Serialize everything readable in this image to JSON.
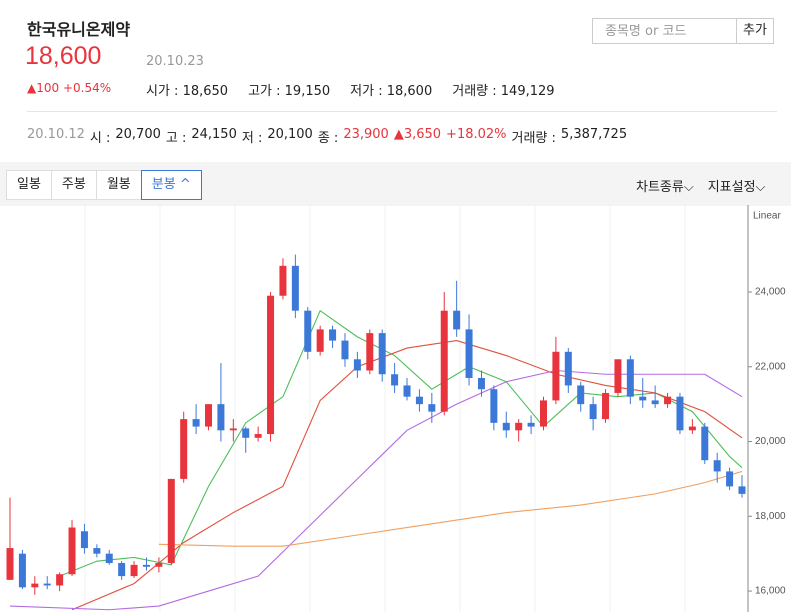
{
  "header": {
    "name": "한국유니온제약",
    "price": "18,600",
    "date": "20.10.23",
    "change": "▲100",
    "change_pct": "+0.54%",
    "stats": [
      {
        "label": "시가 :",
        "value": "18,650"
      },
      {
        "label": "고가 :",
        "value": "19,150"
      },
      {
        "label": "저가 :",
        "value": "18,600"
      },
      {
        "label": "거래량 :",
        "value": "149,129"
      }
    ],
    "search_placeholder": "종목명 or 코드",
    "add_button": "추가"
  },
  "prev_day": {
    "date": "20.10.12",
    "open_label": "시 :",
    "open": "20,700",
    "high_label": "고 :",
    "high": "24,150",
    "low_label": "저 :",
    "low": "20,100",
    "close_label": "종 :",
    "close": "23,900",
    "change": "▲3,650",
    "change_pct": "+18.02%",
    "volume_label": "거래량 :",
    "volume": "5,387,725"
  },
  "tabs": [
    "일봉",
    "주봉",
    "월봉",
    "분봉 ^"
  ],
  "active_tab": 3,
  "menus": [
    "차트종류⌵",
    "지표설정⌵"
  ],
  "chart_data": {
    "type": "candlestick",
    "axis_label": "Linear",
    "up_color": "#e8343c",
    "down_color": "#3b78d8",
    "ylim": [
      15440,
      26140
    ],
    "yticks": [
      {
        "value": 16000,
        "label": "16,000"
      },
      {
        "value": 18000,
        "label": "18,000"
      },
      {
        "value": 20000,
        "label": "20,000"
      },
      {
        "value": 22000,
        "label": "22,000"
      },
      {
        "value": 24000,
        "label": "24,000"
      }
    ],
    "ohlc": [
      [
        16300,
        18500,
        16300,
        17150
      ],
      [
        17000,
        17100,
        16050,
        16100
      ],
      [
        16100,
        16400,
        15900,
        16200
      ],
      [
        16200,
        16400,
        16050,
        16150
      ],
      [
        16150,
        16500,
        16000,
        16450
      ],
      [
        16450,
        17900,
        16400,
        17700
      ],
      [
        17600,
        17800,
        17000,
        17150
      ],
      [
        17150,
        17250,
        16900,
        17000
      ],
      [
        17000,
        17100,
        16700,
        16750
      ],
      [
        16750,
        16800,
        16300,
        16400
      ],
      [
        16400,
        16800,
        16350,
        16700
      ],
      [
        16700,
        16900,
        16550,
        16650
      ],
      [
        16650,
        16900,
        16500,
        16750
      ],
      [
        16750,
        19000,
        16700,
        19000
      ],
      [
        19000,
        20800,
        18900,
        20600
      ],
      [
        20600,
        21000,
        20200,
        20400
      ],
      [
        20400,
        21000,
        20300,
        21000
      ],
      [
        21000,
        22100,
        20000,
        20300
      ],
      [
        20300,
        20600,
        20000,
        20350
      ],
      [
        20350,
        20400,
        19700,
        20100
      ],
      [
        20100,
        20400,
        20000,
        20200
      ],
      [
        20200,
        24000,
        20000,
        23900
      ],
      [
        23900,
        24900,
        23800,
        24700
      ],
      [
        24700,
        25000,
        23300,
        23500
      ],
      [
        23500,
        23600,
        22200,
        22400
      ],
      [
        22400,
        23100,
        22300,
        23000
      ],
      [
        23000,
        23100,
        22500,
        22700
      ],
      [
        22700,
        22900,
        22000,
        22200
      ],
      [
        22200,
        22400,
        21700,
        21900
      ],
      [
        21900,
        23000,
        21800,
        22900
      ],
      [
        22900,
        23000,
        21600,
        21800
      ],
      [
        21800,
        22100,
        21300,
        21500
      ],
      [
        21500,
        21700,
        21100,
        21200
      ],
      [
        21200,
        21400,
        20800,
        21000
      ],
      [
        21000,
        21300,
        20500,
        20800
      ],
      [
        20800,
        24000,
        20700,
        23500
      ],
      [
        23500,
        24300,
        22800,
        23000
      ],
      [
        23000,
        23400,
        21500,
        21700
      ],
      [
        21700,
        21900,
        21200,
        21400
      ],
      [
        21400,
        21500,
        20300,
        20500
      ],
      [
        20500,
        20800,
        20100,
        20300
      ],
      [
        20300,
        20600,
        20000,
        20500
      ],
      [
        20500,
        20700,
        20200,
        20400
      ],
      [
        20400,
        21200,
        20300,
        21100
      ],
      [
        21100,
        22800,
        21000,
        22400
      ],
      [
        22400,
        22500,
        21300,
        21500
      ],
      [
        21500,
        21600,
        20800,
        21000
      ],
      [
        21000,
        21200,
        20300,
        20600
      ],
      [
        20600,
        21400,
        20500,
        21300
      ],
      [
        21300,
        22200,
        21200,
        22200
      ],
      [
        22200,
        22300,
        21000,
        21200
      ],
      [
        21200,
        21700,
        20900,
        21100
      ],
      [
        21100,
        21500,
        20900,
        21000
      ],
      [
        21000,
        21300,
        20900,
        21200
      ],
      [
        21200,
        21300,
        20200,
        20300
      ],
      [
        20300,
        20600,
        20200,
        20400
      ],
      [
        20400,
        20500,
        19400,
        19500
      ],
      [
        19500,
        19700,
        18900,
        19200
      ],
      [
        19200,
        19300,
        18700,
        18800
      ],
      [
        18800,
        19100,
        18500,
        18600
      ]
    ],
    "lines": [
      {
        "color": "#4cbf5a",
        "x": [
          4,
          7,
          10,
          13,
          16,
          19,
          22,
          25,
          28,
          31,
          34,
          37,
          40,
          43,
          46,
          49,
          52,
          55,
          58,
          59
        ],
        "values": [
          16400,
          16800,
          16900,
          16700,
          18800,
          20500,
          21200,
          23500,
          22800,
          22300,
          21400,
          22000,
          21600,
          20400,
          21300,
          21200,
          21300,
          20800,
          19600,
          19300
        ]
      },
      {
        "color": "#e0503c",
        "x": [
          5,
          10,
          14,
          18,
          22,
          25,
          28,
          32,
          36,
          40,
          44,
          48,
          52,
          56,
          59
        ],
        "values": [
          15500,
          16200,
          17300,
          18100,
          18800,
          21100,
          22000,
          22500,
          22700,
          22300,
          21800,
          21500,
          21300,
          20800,
          20100
        ]
      },
      {
        "color": "#b36ae2",
        "x": [
          0,
          8,
          12,
          16,
          20,
          24,
          28,
          32,
          36,
          40,
          44,
          48,
          52,
          56,
          59
        ],
        "values": [
          15600,
          15500,
          15600,
          16000,
          16400,
          17700,
          19000,
          20300,
          21000,
          21600,
          21900,
          21800,
          21800,
          21800,
          21200
        ]
      },
      {
        "color": "#f0a060",
        "x": [
          12,
          18,
          22,
          28,
          34,
          40,
          46,
          52,
          56,
          59
        ],
        "values": [
          17250,
          17200,
          17200,
          17500,
          17800,
          18100,
          18300,
          18600,
          18900,
          19200
        ]
      }
    ]
  }
}
